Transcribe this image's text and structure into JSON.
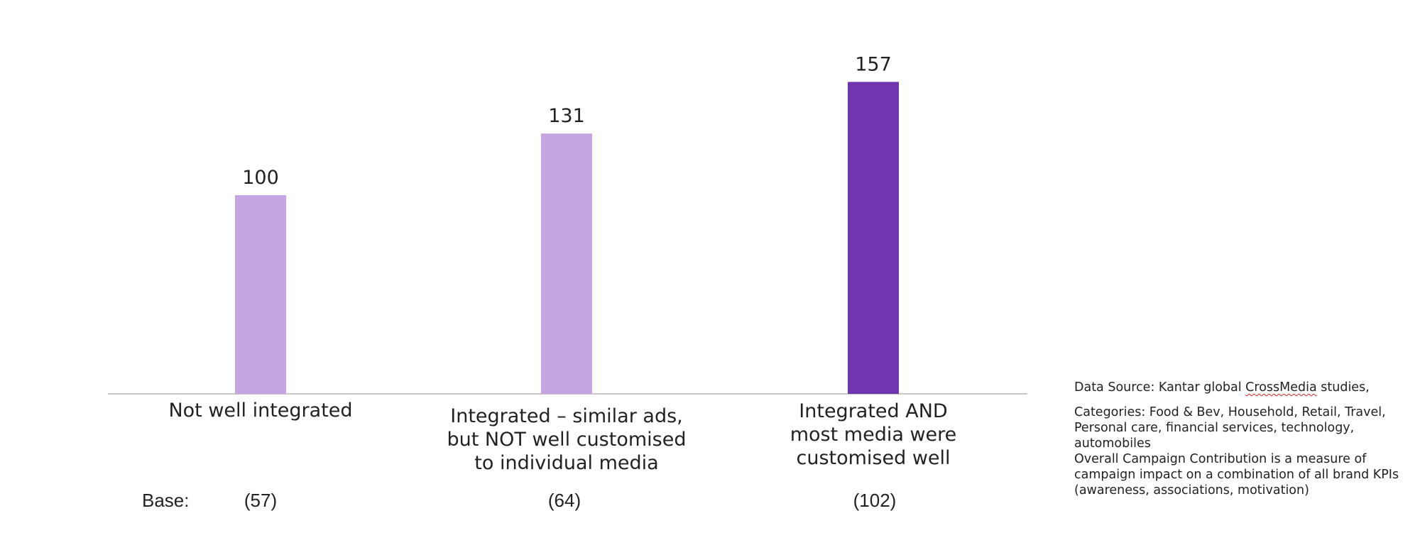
{
  "chart_data": {
    "type": "bar",
    "title": "",
    "xlabel": "",
    "ylabel": "",
    "ylim": [
      0,
      175
    ],
    "grid": false,
    "categories": [
      "Not well integrated",
      "Integrated – similar ads,\nbut NOT well customised\nto individual media",
      "Integrated AND\nmost media were\ncustomised well"
    ],
    "values": [
      100,
      131,
      157
    ],
    "data_labels": [
      "100",
      "131",
      "157"
    ],
    "bar_colors": [
      "#c5a6e3",
      "#c5a6e3",
      "#7235b0"
    ],
    "base_prefix": "Base:",
    "base_values": [
      "(57)",
      "(64)",
      "(102)"
    ]
  },
  "notes": {
    "source_prefix": "Data Source: Kantar global ",
    "source_word": "CrossMedia",
    "source_suffix": " studies,",
    "categories_text": "Categories: Food & Bev, Household, Retail, Travel, Personal care, financial services, technology, automobiles",
    "definition_text": "Overall Campaign Contribution is a measure of campaign impact on a combination of all brand KPIs (awareness, associations, motivation)"
  },
  "colors": {
    "light_bar": "#c5a6e3",
    "dark_bar": "#7235b0",
    "axis": "#c8c8c8",
    "text": "#222222"
  }
}
